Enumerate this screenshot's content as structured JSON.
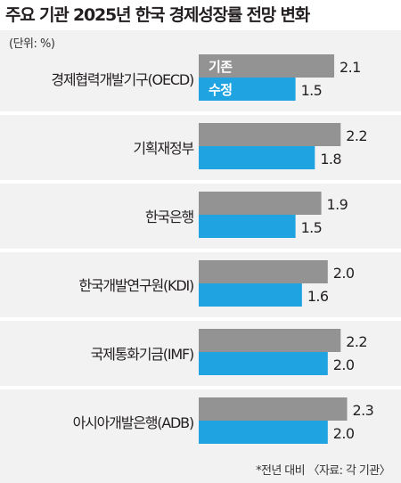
{
  "title": "주요 기관 2025년 한국 경제성장률 전망 변화",
  "unit_label": "(단위: %)",
  "footnote": "*전년 대비 〈자료: 각 기관〉",
  "colors": {
    "before": "#939393",
    "after": "#1fa3e1",
    "background": "#f2f2f2"
  },
  "chart_data": {
    "type": "bar",
    "orientation": "horizontal",
    "categories": [
      "경제협력개발기구(OECD)",
      "기획재정부",
      "한국은행",
      "한국개발연구원(KDI)",
      "국제통화기금(IMF)",
      "아시아개발은행(ADB)"
    ],
    "series": [
      {
        "name": "기존",
        "values": [
          2.1,
          2.2,
          1.9,
          2.0,
          2.2,
          2.3
        ],
        "value_labels": [
          "2.1",
          "2.2",
          "1.9",
          "2.0",
          "2.2",
          "2.3"
        ]
      },
      {
        "name": "수정",
        "values": [
          1.5,
          1.8,
          1.5,
          1.6,
          2.0,
          2.0
        ],
        "value_labels": [
          "1.5",
          "1.8",
          "1.5",
          "1.6",
          "2.0",
          "2.0"
        ]
      }
    ],
    "legend": "inside-first-group",
    "grid": false
  }
}
